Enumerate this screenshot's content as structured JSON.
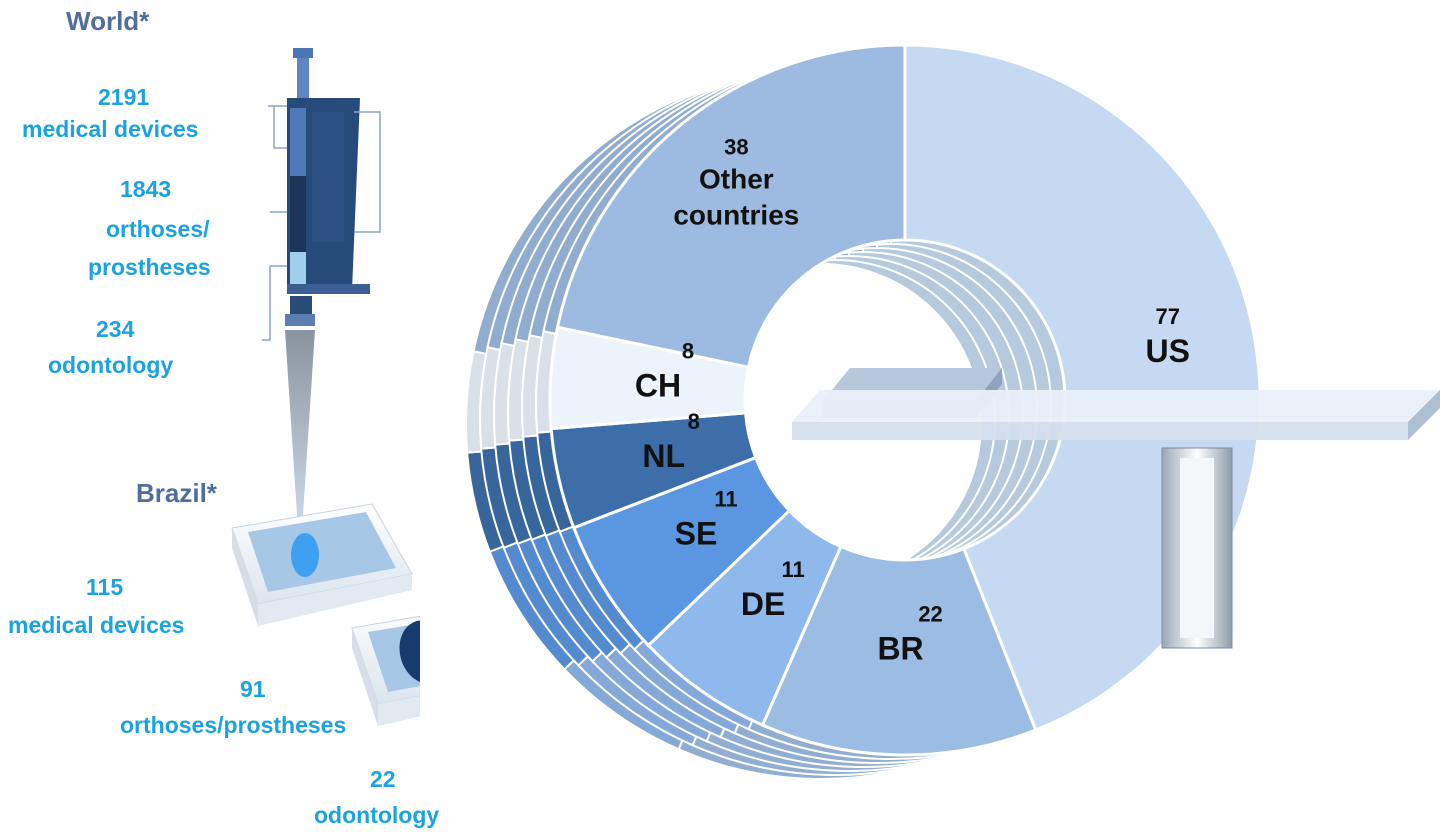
{
  "world": {
    "title": "World*",
    "medical_count": "2191",
    "medical_label": "medical devices",
    "orthoses_count": "1843",
    "orthoses_label1": "orthoses/",
    "orthoses_label2": "prostheses",
    "odontology_count": "234",
    "odontology_label": "odontology"
  },
  "brazil": {
    "title": "Brazil*",
    "medical_count": "115",
    "medical_label": "medical devices",
    "orthoses_count": "91",
    "orthoses_label": "orthoses/prostheses",
    "odontology_count": "22",
    "odontology_label": "odontology"
  },
  "colors": {
    "header": "#4f6e9c",
    "cyan_text": "#1aa3e0",
    "pipette_dark": "#2e4f80",
    "pipette_light": "#a9cde6"
  },
  "chart_data": {
    "type": "pie",
    "style": "3d-donut",
    "categories": [
      "US",
      "BR",
      "DE",
      "SE",
      "NL",
      "CH",
      "Other countries"
    ],
    "values": [
      77,
      22,
      11,
      11,
      8,
      8,
      38
    ],
    "value_labels": [
      "77",
      "22",
      "11",
      "11",
      "8",
      "8",
      "38"
    ],
    "label_lines": [
      [
        "US"
      ],
      [
        "BR"
      ],
      [
        "DE"
      ],
      [
        "SE"
      ],
      [
        "NL"
      ],
      [
        "CH"
      ],
      [
        "Other",
        "countries"
      ]
    ],
    "colors": [
      "#c5daf2",
      "#9bbde3",
      "#8fb8ec",
      "#5b96e0",
      "#3d6eaa",
      "#edf3fb",
      "#9dbbe0"
    ],
    "title": "",
    "legend": "none"
  }
}
